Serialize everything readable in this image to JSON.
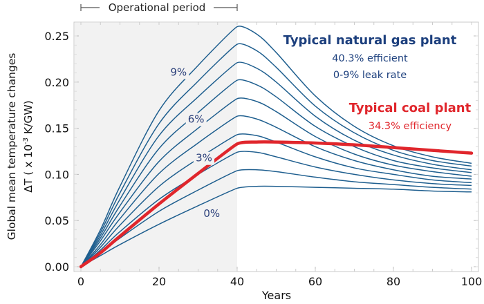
{
  "chart_data": {
    "type": "line",
    "xlabel": "Years",
    "ylabel_line1": "Global mean temperature changes",
    "ylabel_line2_pre": "ΔT ( x 10",
    "ylabel_line2_sup": "-3",
    "ylabel_line2_post": " K/GW)",
    "xlim": [
      0,
      100
    ],
    "ylim": [
      0,
      0.26
    ],
    "x_ticks": [
      0,
      20,
      40,
      60,
      80,
      100
    ],
    "x_tick_labels": [
      "0",
      "20",
      "40",
      "60",
      "80",
      "100"
    ],
    "y_ticks": [
      0,
      0.05,
      0.1,
      0.15,
      0.2,
      0.25
    ],
    "y_tick_labels": [
      "0.00",
      "0.05",
      "0.10",
      "0.15",
      "0.20",
      "0.25"
    ],
    "shaded_region": {
      "label": "Operational period",
      "x_range": [
        0,
        40
      ],
      "color": "#f2f2f2"
    },
    "x": [
      0,
      5,
      10,
      20,
      30,
      40,
      45,
      50,
      60,
      70,
      80,
      90,
      100
    ],
    "gas_color": "#1f5f8f",
    "coal_color": "#e0262c",
    "gas_series": [
      {
        "leak": "0%",
        "values": [
          0,
          0.012,
          0.024,
          0.046,
          0.066,
          0.085,
          0.087,
          0.087,
          0.086,
          0.085,
          0.084,
          0.082,
          0.081
        ]
      },
      {
        "leak": "1%",
        "values": [
          0,
          0.015,
          0.031,
          0.06,
          0.083,
          0.104,
          0.105,
          0.103,
          0.097,
          0.092,
          0.089,
          0.086,
          0.084
        ]
      },
      {
        "leak": "2%",
        "values": [
          0,
          0.018,
          0.038,
          0.073,
          0.1,
          0.124,
          0.124,
          0.119,
          0.108,
          0.1,
          0.094,
          0.09,
          0.088
        ]
      },
      {
        "leak": "3%",
        "values": [
          0,
          0.021,
          0.045,
          0.087,
          0.117,
          0.143,
          0.142,
          0.135,
          0.119,
          0.107,
          0.1,
          0.094,
          0.091
        ]
      },
      {
        "leak": "4%",
        "values": [
          0,
          0.024,
          0.052,
          0.101,
          0.134,
          0.163,
          0.16,
          0.151,
          0.13,
          0.115,
          0.105,
          0.098,
          0.095
        ]
      },
      {
        "leak": "5%",
        "values": [
          0,
          0.028,
          0.059,
          0.114,
          0.15,
          0.182,
          0.179,
          0.168,
          0.141,
          0.122,
          0.11,
          0.103,
          0.098
        ]
      },
      {
        "leak": "6%",
        "values": [
          0,
          0.031,
          0.066,
          0.128,
          0.167,
          0.202,
          0.197,
          0.184,
          0.152,
          0.13,
          0.115,
          0.107,
          0.102
        ]
      },
      {
        "leak": "7%",
        "values": [
          0,
          0.034,
          0.073,
          0.142,
          0.184,
          0.221,
          0.215,
          0.2,
          0.163,
          0.137,
          0.121,
          0.111,
          0.105
        ]
      },
      {
        "leak": "8%",
        "values": [
          0,
          0.037,
          0.08,
          0.155,
          0.201,
          0.241,
          0.234,
          0.216,
          0.174,
          0.145,
          0.126,
          0.115,
          0.109
        ]
      },
      {
        "leak": "9%",
        "values": [
          0,
          0.04,
          0.087,
          0.169,
          0.218,
          0.26,
          0.252,
          0.232,
          0.185,
          0.152,
          0.131,
          0.119,
          0.112
        ]
      }
    ],
    "coal_series": {
      "values": [
        0,
        0.015,
        0.033,
        0.068,
        0.101,
        0.133,
        0.135,
        0.135,
        0.134,
        0.132,
        0.129,
        0.126,
        0.123
      ]
    },
    "curve_labels": [
      {
        "text": "9%",
        "x": 25,
        "y": 0.207
      },
      {
        "text": "6%",
        "x": 29.5,
        "y": 0.156
      },
      {
        "text": "3%",
        "x": 31.5,
        "y": 0.114
      },
      {
        "text": "0%",
        "x": 33.5,
        "y": 0.054
      }
    ],
    "annotations": {
      "gas_title": "Typical natural gas plant",
      "gas_line1": "40.3% efficient",
      "gas_line2": "0-9% leak rate",
      "coal_title": "Typical coal plant",
      "coal_line1": "34.3% efficiency"
    }
  }
}
